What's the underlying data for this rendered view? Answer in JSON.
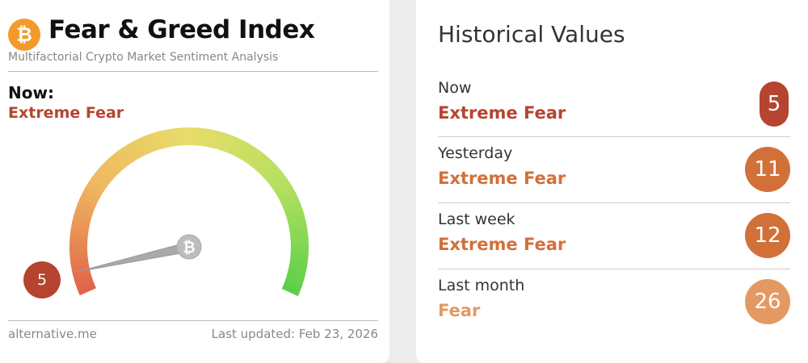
{
  "index_card": {
    "logo_icon": "bitcoin-icon",
    "title": "Fear & Greed Index",
    "subtitle": "Multifactorial Crypto Market Sentiment Analysis",
    "now_label": "Now:",
    "now_status": "Extreme Fear",
    "gauge": {
      "value": 5,
      "min": 0,
      "max": 100,
      "value_label": "5",
      "colors": [
        "#e0644a",
        "#f0b860",
        "#e8dc6a",
        "#b6e060",
        "#5ccf4a"
      ],
      "needle_icon": "bitcoin-icon"
    },
    "source": "alternative.me",
    "last_updated": "Last updated: Feb 23, 2026"
  },
  "historical": {
    "title": "Historical Values",
    "rows": [
      {
        "label": "Now",
        "status": "Extreme Fear",
        "value": "5",
        "color": "#b5452f"
      },
      {
        "label": "Yesterday",
        "status": "Extreme Fear",
        "value": "11",
        "color": "#d2703a"
      },
      {
        "label": "Last week",
        "status": "Extreme Fear",
        "value": "12",
        "color": "#d2703a"
      },
      {
        "label": "Last month",
        "status": "Fear",
        "value": "26",
        "color": "#e39a62"
      }
    ]
  }
}
